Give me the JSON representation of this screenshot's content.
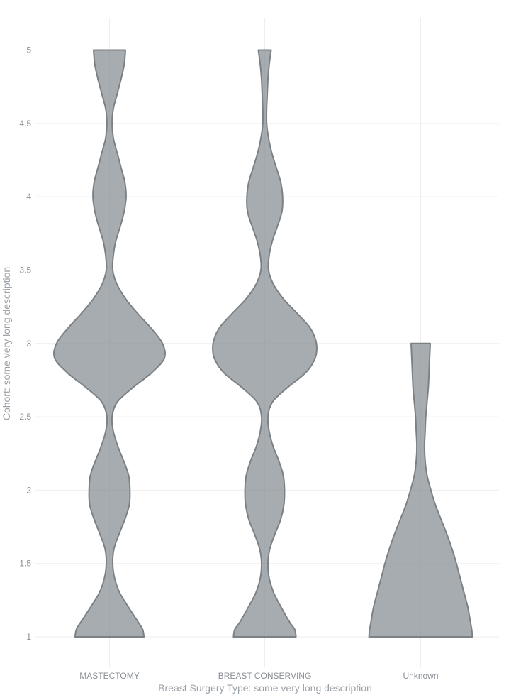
{
  "chart_data": {
    "type": "violin",
    "title": "",
    "xlabel": "Breast Surgery Type: some very long description",
    "ylabel": "Cohort: some very long description",
    "ylim": [
      0.78,
      5.22
    ],
    "yticks": [
      1,
      1.5,
      2,
      2.5,
      3,
      3.5,
      4,
      4.5,
      5
    ],
    "ytick_labels": [
      "1",
      "1.5",
      "2",
      "2.5",
      "3",
      "3.5",
      "4",
      "4.5",
      "5"
    ],
    "categories": [
      "MASTECTOMY",
      "BREAST CONSERVING",
      "Unknown"
    ],
    "grid": true,
    "colors": {
      "fill": "#8d9599",
      "fill_opacity": 0.78,
      "stroke": "#7b8185",
      "grid": "#eeeeee",
      "tick_text": "#8a8f96",
      "axis_title": "#9aa0a6"
    },
    "violins": [
      {
        "category": "MASTECTOMY",
        "y_range": [
          1,
          5
        ],
        "profile": [
          [
            1.0,
            0.54
          ],
          [
            1.05,
            0.52
          ],
          [
            1.1,
            0.45
          ],
          [
            1.2,
            0.3
          ],
          [
            1.3,
            0.16
          ],
          [
            1.4,
            0.08
          ],
          [
            1.5,
            0.05
          ],
          [
            1.6,
            0.07
          ],
          [
            1.7,
            0.15
          ],
          [
            1.8,
            0.24
          ],
          [
            1.9,
            0.31
          ],
          [
            2.0,
            0.32
          ],
          [
            2.1,
            0.3
          ],
          [
            2.2,
            0.22
          ],
          [
            2.3,
            0.13
          ],
          [
            2.4,
            0.06
          ],
          [
            2.5,
            0.04
          ],
          [
            2.6,
            0.12
          ],
          [
            2.7,
            0.37
          ],
          [
            2.8,
            0.66
          ],
          [
            2.9,
            0.86
          ],
          [
            3.0,
            0.83
          ],
          [
            3.1,
            0.66
          ],
          [
            3.2,
            0.45
          ],
          [
            3.3,
            0.26
          ],
          [
            3.4,
            0.12
          ],
          [
            3.5,
            0.05
          ],
          [
            3.6,
            0.06
          ],
          [
            3.7,
            0.1
          ],
          [
            3.8,
            0.17
          ],
          [
            3.9,
            0.23
          ],
          [
            4.0,
            0.26
          ],
          [
            4.1,
            0.24
          ],
          [
            4.2,
            0.18
          ],
          [
            4.3,
            0.12
          ],
          [
            4.4,
            0.06
          ],
          [
            4.5,
            0.04
          ],
          [
            4.6,
            0.06
          ],
          [
            4.7,
            0.12
          ],
          [
            4.8,
            0.18
          ],
          [
            4.9,
            0.23
          ],
          [
            5.0,
            0.25
          ]
        ]
      },
      {
        "category": "BREAST CONSERVING",
        "y_range": [
          1,
          5
        ],
        "profile": [
          [
            1.0,
            0.49
          ],
          [
            1.05,
            0.47
          ],
          [
            1.1,
            0.39
          ],
          [
            1.2,
            0.26
          ],
          [
            1.3,
            0.14
          ],
          [
            1.4,
            0.07
          ],
          [
            1.5,
            0.05
          ],
          [
            1.6,
            0.08
          ],
          [
            1.7,
            0.16
          ],
          [
            1.8,
            0.25
          ],
          [
            1.9,
            0.3
          ],
          [
            2.0,
            0.31
          ],
          [
            2.1,
            0.29
          ],
          [
            2.2,
            0.22
          ],
          [
            2.3,
            0.13
          ],
          [
            2.4,
            0.07
          ],
          [
            2.5,
            0.05
          ],
          [
            2.6,
            0.12
          ],
          [
            2.7,
            0.36
          ],
          [
            2.8,
            0.64
          ],
          [
            2.9,
            0.79
          ],
          [
            3.0,
            0.81
          ],
          [
            3.1,
            0.72
          ],
          [
            3.2,
            0.52
          ],
          [
            3.3,
            0.3
          ],
          [
            3.4,
            0.14
          ],
          [
            3.5,
            0.06
          ],
          [
            3.6,
            0.07
          ],
          [
            3.7,
            0.12
          ],
          [
            3.8,
            0.2
          ],
          [
            3.9,
            0.27
          ],
          [
            4.0,
            0.28
          ],
          [
            4.1,
            0.25
          ],
          [
            4.2,
            0.18
          ],
          [
            4.3,
            0.11
          ],
          [
            4.4,
            0.06
          ],
          [
            4.5,
            0.03
          ],
          [
            4.6,
            0.03
          ],
          [
            4.7,
            0.04
          ],
          [
            4.8,
            0.05
          ],
          [
            4.9,
            0.07
          ],
          [
            5.0,
            0.1
          ]
        ]
      },
      {
        "category": "Unknown",
        "y_range": [
          1,
          3
        ],
        "profile": [
          [
            1.0,
            0.81
          ],
          [
            1.05,
            0.8
          ],
          [
            1.1,
            0.78
          ],
          [
            1.2,
            0.74
          ],
          [
            1.3,
            0.68
          ],
          [
            1.4,
            0.62
          ],
          [
            1.5,
            0.56
          ],
          [
            1.6,
            0.49
          ],
          [
            1.7,
            0.41
          ],
          [
            1.8,
            0.32
          ],
          [
            1.9,
            0.23
          ],
          [
            2.0,
            0.16
          ],
          [
            2.1,
            0.1
          ],
          [
            2.2,
            0.07
          ],
          [
            2.3,
            0.06
          ],
          [
            2.4,
            0.07
          ],
          [
            2.5,
            0.08
          ],
          [
            2.6,
            0.1
          ],
          [
            2.7,
            0.12
          ],
          [
            2.8,
            0.13
          ],
          [
            2.9,
            0.14
          ],
          [
            3.0,
            0.15
          ]
        ]
      }
    ]
  }
}
